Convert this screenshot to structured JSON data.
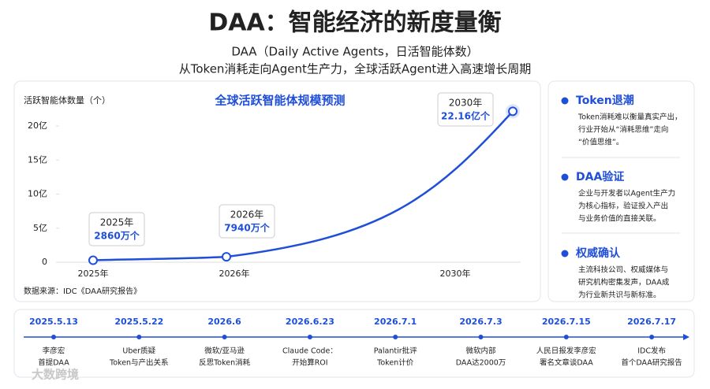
{
  "header": {
    "title": "DAA：智能经济的新度量衡",
    "subtitle": "DAA（Daily Active Agents，日活智能体数）",
    "tagline": "从Token消耗走向Agent生产力，全球活跃Agent进入高速增长周期"
  },
  "chart_data": {
    "type": "line",
    "title": "全球活跃智能体规模预测",
    "y_label": "活跃智能体数量（个）",
    "categories": [
      "2025年",
      "2026年",
      "2030年"
    ],
    "values": [
      0.286,
      0.794,
      22.16
    ],
    "value_labels": [
      "2860万个",
      "7940万个",
      "22.16亿个"
    ],
    "color": "#1f4fd8",
    "ylim": [
      0,
      22.5
    ],
    "yticks": [
      0,
      {
        "value": 5,
        "label": "5亿"
      },
      {
        "value": 10,
        "label": "10亿"
      },
      {
        "value": 15,
        "label": "15亿"
      },
      {
        "value": 20,
        "label": "20亿"
      }
    ],
    "source": "数据来源：IDC《DAA研究报告》"
  },
  "insights": [
    {
      "title": "Token退潮",
      "lines": [
        "Token消耗难以衡量真实产出，",
        "行业开始从“消耗思维”走向",
        "“价值思维”。"
      ]
    },
    {
      "title": "DAA验证",
      "lines": [
        "企业与开发者以Agent生产力",
        "为核心指标，验证投入产出",
        "与业务价值的直接关联。"
      ]
    },
    {
      "title": "权威确认",
      "lines": [
        "主流科技公司、权威媒体与",
        "研究机构密集发声，DAA成",
        "为行业新共识与新标准。"
      ]
    }
  ],
  "timeline": [
    {
      "date": "2025.5.13",
      "lines": [
        "李彦宏",
        "首提DAA"
      ]
    },
    {
      "date": "2025.5.22",
      "lines": [
        "Uber质疑",
        "Token与产出关系"
      ]
    },
    {
      "date": "2026.6",
      "lines": [
        "微软/亚马逊",
        "反思Token消耗"
      ]
    },
    {
      "date": "2026.6.23",
      "lines": [
        "Claude Code：",
        "开始算ROI"
      ]
    },
    {
      "date": "2026.7.1",
      "lines": [
        "Palantir批评",
        "Token计价"
      ]
    },
    {
      "date": "2026.7.3",
      "lines": [
        "微软内部",
        "DAA达2000万"
      ]
    },
    {
      "date": "2026.7.15",
      "lines": [
        "人民日报发李彦宏",
        "署名文章谈DAA"
      ]
    },
    {
      "date": "2026.7.17",
      "lines": [
        "IDC发布",
        "首个DAA研究报告"
      ]
    }
  ],
  "watermark": "大数跨境"
}
